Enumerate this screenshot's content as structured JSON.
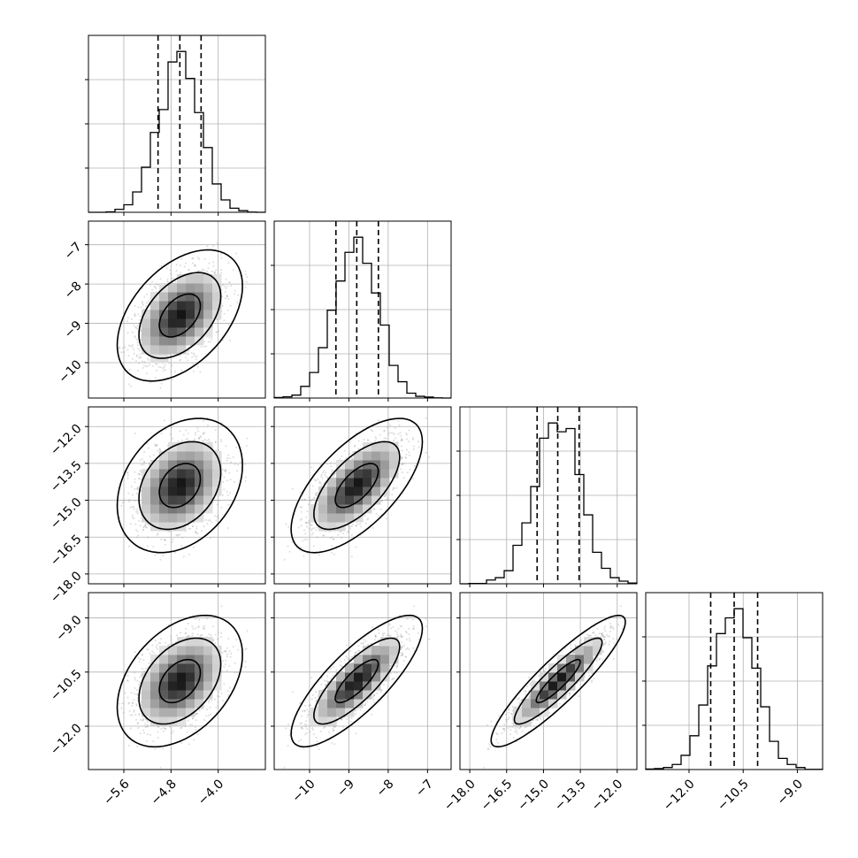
{
  "chart_data": {
    "type": "corner",
    "title": "",
    "params": [
      {
        "range": [
          -6.2,
          -3.2
        ],
        "ticks": [
          -5.6,
          -4.8,
          -4.0
        ],
        "tick_labels": [
          "−5.6",
          "−4.8",
          "−4.0"
        ],
        "mean": -4.65,
        "sd": 0.35,
        "quantiles": [
          -5.02,
          -4.65,
          -4.29
        ]
      },
      {
        "range": [
          -10.9,
          -6.4
        ],
        "ticks": [
          -10,
          -9,
          -8,
          -7
        ],
        "tick_labels": [
          "−10",
          "−9",
          "−8",
          "−7"
        ],
        "mean": -8.8,
        "sd": 0.55,
        "quantiles": [
          -9.33,
          -8.8,
          -8.25
        ]
      },
      {
        "range": [
          -18.4,
          -11.2
        ],
        "ticks": [
          -18.0,
          -16.5,
          -15.0,
          -13.5,
          -12.0
        ],
        "tick_labels": [
          "−18.0",
          "−16.5",
          "−15.0",
          "−13.5",
          "−12.0"
        ],
        "mean": -14.4,
        "sd": 0.9,
        "quantiles": [
          -15.26,
          -14.42,
          -13.55
        ]
      },
      {
        "range": [
          -13.2,
          -8.3
        ],
        "ticks": [
          -12.0,
          -10.5,
          -9.0
        ],
        "tick_labels": [
          "−12.0",
          "−10.5",
          "−9.0"
        ],
        "mean": -10.75,
        "sd": 0.6,
        "quantiles": [
          -11.4,
          -10.75,
          -10.1
        ]
      }
    ],
    "correlations": [
      [
        1,
        0.45,
        0.3,
        0.4
      ],
      [
        0.45,
        1,
        0.65,
        0.8
      ],
      [
        0.3,
        0.65,
        1,
        0.9
      ],
      [
        0.4,
        0.8,
        0.9,
        1
      ]
    ],
    "histogram_bins": 20,
    "samples": 4000,
    "contour_levels": [
      0.39,
      0.86,
      0.99
    ],
    "grid": true,
    "line_color": "#000000",
    "point_color": "#9e9e9e",
    "quantile_line_style": "dashed"
  }
}
